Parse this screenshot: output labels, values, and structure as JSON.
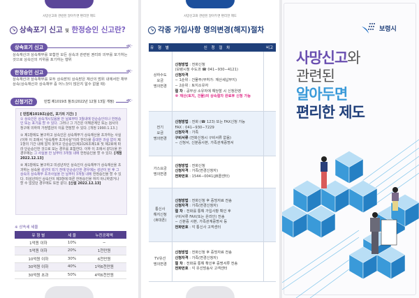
{
  "panel1": {
    "subtitle": "사망신고와 관련된 알아두면 편리한 제도",
    "title_a": "상속포기 신고",
    "title_and": "및",
    "title_b": "한정승인 신고란?",
    "sec1": {
      "label": "상속포기 신고",
      "text": "상속재산과 상속채무를 포함한 모든 상속과 관련된 권리와 의무를 포기하는 것으로 상속인의 지위를 포기하는 행위"
    },
    "sec2": {
      "label": "한정승인 신고",
      "text": "상속재산과 상속채무를 모두 상속받되 상속받은 재산의 범위 내에서만 채무 상속(상속재산과 상속채무 중 어느것이 많은지 알수 없을 때)"
    },
    "sec3": {
      "label": "신청기간",
      "note": "민법 제1019조 참조(2022년 12월 13일 개정)"
    },
    "law": {
      "heading": "[ 민법제1019조(승인, 포기의 기간) ]",
      "p1_hl": "① 상속인은 상속개시있음을 안 날로부터 3월내에 단순승인이나 한정승인 또는 포기를 할 수 있다.",
      "p1_rest": " 그러나 그 기간은 이해관계인 또는 검사의 청구에 의하여 가정법원이 이를 연장할 수 있다. [개정 1990.1.13.]",
      "p2_a": "③ 제1항에도 불구하고 상속인은 상속채무가 상속재산을 초과하는 사실(이하 이 조에서 \"상속채무 초과사실\"이라 한다)을 ",
      "p2_hl1": "중대한 과실 없이",
      "p2_b": " 제1항의 기간 내에 알지 못하고 단순승인(제1026조제1호 및 제2호에 따라 단순승인한 것으로 보는 경우를 포함한다. 이하 이 조에서 같다)을 한 경우에는 ",
      "p2_hl2": "그 사실을 안 날부터 3개월 내에",
      "p2_c": " 한정승인을 할 수 있다.",
      "p2_rev": "[개정 2022.12.13]",
      "p3_a": "④ 제1항에도 불구하고 미성년자인 상속인이 상속채무가 상속재산을 초과하는 상속을 ",
      "p3_hl": "성년이 되기 전에 단순승인한 경우에는 성년이 된 후 그 상속의 상속채무 초과사실을 안 날부터 3개월 내에",
      "p3_b": " 한정승인을 할 수 있다. 미성년자인 상속인이 제3항에 따른 한정승인을 하지 아니하였거나 할 수 없었던 경우에도 또한 같다.",
      "p3_rev": "[신설 2022.12.13]"
    },
    "rate_caption": "※ 상속세 세율",
    "rate_headers": [
      "유 형 별",
      "세 율",
      "누진공제액"
    ],
    "rate_rows": [
      [
        "1억원 이하",
        "10%",
        "−"
      ],
      [
        "5억원 이하",
        "20%",
        "1천만원"
      ],
      [
        "10억원 이하",
        "30%",
        "6천만원"
      ],
      [
        "30억원 이하",
        "40%",
        "1억6천만원"
      ],
      [
        "30억원 초과",
        "50%",
        "4억6천만원"
      ]
    ]
  },
  "panel2": {
    "subtitle": "사망신고와 관련된 알아두면 편리한 제도",
    "title": "각종 가입사항 명의변경(해지)절차",
    "headers": [
      "유 형 별",
      "신 청 절 차",
      "비고"
    ],
    "rows": [
      {
        "type": [
          "상하수도",
          "요금",
          "명의변경"
        ],
        "lines": [
          [
            "신청방법",
            " : 전화신청"
          ],
          [
            "",
            "(보령시청 수도과 ☎ 041−930−4121)"
          ],
          [
            "신청자격",
            ""
          ],
          [
            "",
            "  − 1순위 : 건물주(무허가: 재산세납부지)"
          ],
          [
            "",
            "  − 2순위 : 토지소유자"
          ],
          [
            "절    차",
            " : 공부상 소유자에 해당할 시 신청완영"
          ]
        ],
        "note": "※ 재산(토지, 건물)의 상속절차 완료후 신청 가능"
      },
      {
        "type": [
          "전기",
          "요금",
          "명의변경"
        ],
        "lines": [
          [
            "신청방법",
            " : 전화 (☎ 123) 또는 FAX신청 가능"
          ],
          [
            "",
            "      FAX : 041−930−7229"
          ],
          [
            "신청자격",
            " : 가족"
          ],
          [
            "구비서류",
            " (전화신청시 구비서류 없음)"
          ],
          [
            "",
            "  − 신청서, 신분증사본, 가족관계증명서"
          ]
        ]
      },
      {
        "type": [
          "가스요금",
          "명의변경"
        ],
        "lines": [
          [
            "신청방법",
            " : 전화신청"
          ],
          [
            "신청자격",
            " : 가족(변경신청자)"
          ],
          [
            "전화번호",
            " : 1544−0041(JB콜센터)"
          ]
        ]
      },
      {
        "type": [
          "통신사",
          "해지신청",
          "(휴대폰)"
        ],
        "lines": [
          [
            "신청방법",
            " : 전화신청 후 증빙자료 전송"
          ],
          [
            "신청자격",
            " : 가족(변경신청자)"
          ],
          [
            "절    차",
            " : 전화를 통해 가입사항 확인 후"
          ],
          [
            "",
            " 구비서류 FAX(또는 온라인) 전송"
          ],
          [
            "",
            "  − 신분증 사본, 가족관계증명서 등"
          ],
          [
            "전화번호",
            " : 각 통신사 고객센터"
          ]
        ]
      },
      {
        "type": [
          "TV유선",
          "명의변경"
        ],
        "lines": [
          [
            "신청방법",
            " : 전화신청 후 증빙자료 전송"
          ],
          [
            "신청자격",
            " : 가족(변경신청자)"
          ],
          [
            "절    차",
            " : 전화를 통해 확인후 증명서류 전송"
          ],
          [
            "전화번호",
            " : 각 유선방송사 고객센터"
          ]
        ]
      }
    ]
  },
  "panel3": {
    "logo_text": "보령시",
    "title": {
      "l1a": "사망신고",
      "l1b": "와",
      "l2": "관련된",
      "l3": "알아두면",
      "l4": "편리한 제도"
    }
  },
  "colors": {
    "purple": "#6a55a6",
    "navy": "#1f3f7a",
    "sky": "#3a9ad9",
    "pink": "#e0308a"
  }
}
